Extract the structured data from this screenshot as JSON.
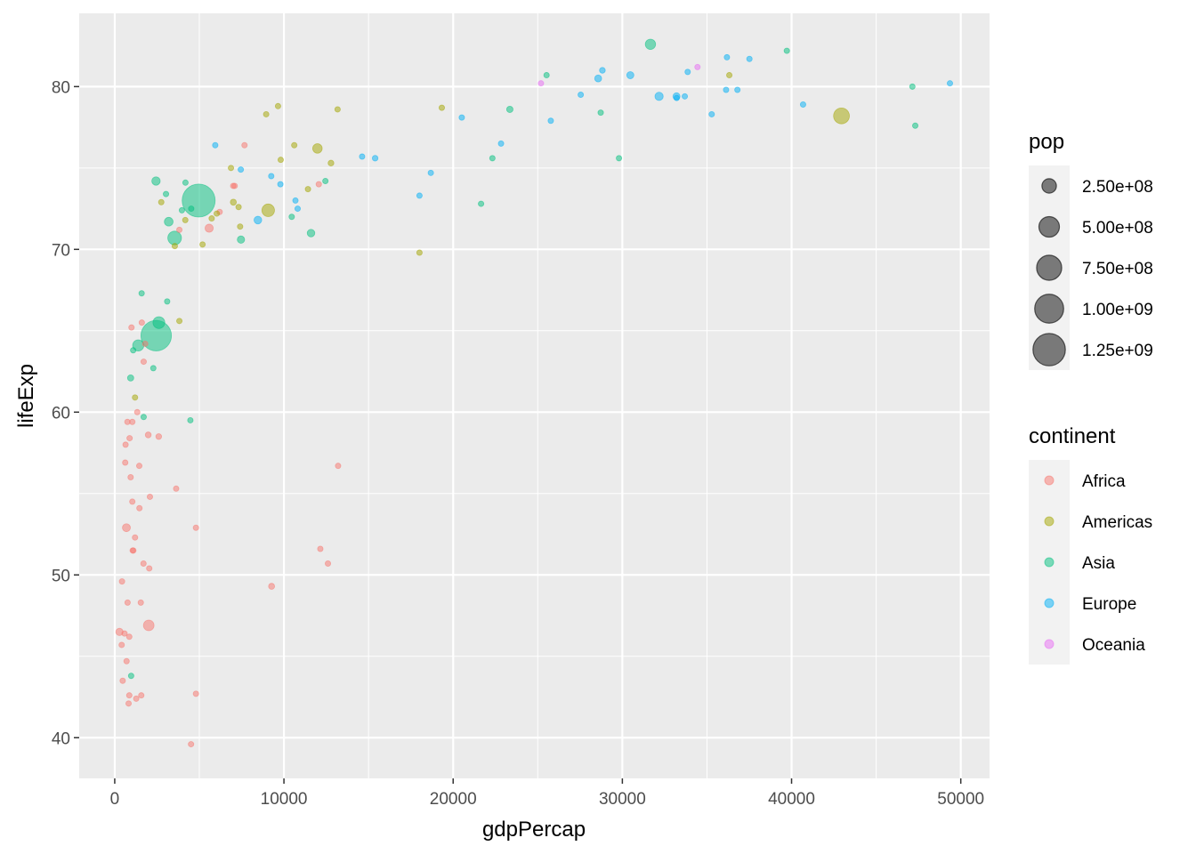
{
  "chart_data": {
    "type": "scatter",
    "title": "",
    "xlabel": "gdpPercap",
    "ylabel": "lifeExp",
    "xlim": [
      -2100,
      51700
    ],
    "ylim": [
      37.5,
      84.5
    ],
    "x_ticks": [
      0,
      10000,
      20000,
      30000,
      40000,
      50000
    ],
    "x_tick_labels": [
      "0",
      "10000",
      "20000",
      "30000",
      "40000",
      "50000"
    ],
    "y_ticks": [
      40,
      50,
      60,
      70,
      80
    ],
    "y_tick_labels": [
      "40",
      "50",
      "60",
      "70",
      "80"
    ],
    "grid": true,
    "point_opacity": 0.5,
    "legend_position": "right",
    "size_legend": {
      "title": "pop",
      "values": [
        250000000,
        500000000,
        750000000,
        1000000000,
        1250000000
      ],
      "labels": [
        "2.50e+08",
        "5.00e+08",
        "7.50e+08",
        "1.00e+09",
        "1.25e+09"
      ],
      "color": "#000000"
    },
    "color_legend": {
      "title": "continent",
      "entries": [
        {
          "name": "Africa",
          "color": "#F8766D"
        },
        {
          "name": "Americas",
          "color": "#A3A500"
        },
        {
          "name": "Asia",
          "color": "#00BF7D"
        },
        {
          "name": "Europe",
          "color": "#00B0F6"
        },
        {
          "name": "Oceania",
          "color": "#E76BF3"
        }
      ]
    },
    "series": [
      {
        "name": "Africa",
        "points": [
          [
            6200,
            72.3,
            33000000
          ],
          [
            4800,
            42.7,
            12000000
          ],
          [
            1450,
            56.7,
            8000000
          ],
          [
            12600,
            50.7,
            2000000
          ],
          [
            1200,
            52.3,
            14000000
          ],
          [
            430,
            49.6,
            8000000
          ],
          [
            2040,
            50.4,
            18000000
          ],
          [
            700,
            44.7,
            4500000
          ],
          [
            1700,
            50.7,
            10000000
          ],
          [
            990,
            65.2,
            700000
          ],
          [
            280,
            46.5,
            64000000
          ],
          [
            3630,
            55.3,
            3800000
          ],
          [
            1540,
            48.3,
            18000000
          ],
          [
            2080,
            54.8,
            500000
          ],
          [
            5580,
            71.3,
            80000000
          ],
          [
            12150,
            51.6,
            550000
          ],
          [
            640,
            58.0,
            4900000
          ],
          [
            690,
            52.9,
            76000000
          ],
          [
            13200,
            56.7,
            1400000
          ],
          [
            750,
            59.4,
            1700000
          ],
          [
            1330,
            60.0,
            22000000
          ],
          [
            940,
            56.0,
            9900000
          ],
          [
            580,
            46.4,
            1500000
          ],
          [
            1460,
            54.1,
            35000000
          ],
          [
            1570,
            42.6,
            2000000
          ],
          [
            410,
            45.7,
            3200000
          ],
          [
            12060,
            74.0,
            6000000
          ],
          [
            1040,
            59.4,
            19000000
          ],
          [
            760,
            48.3,
            13000000
          ],
          [
            1040,
            54.5,
            12000000
          ],
          [
            1800,
            64.2,
            3300000
          ],
          [
            7000,
            73.9,
            1200000
          ],
          [
            3820,
            71.2,
            33000000
          ],
          [
            820,
            42.1,
            20000000
          ],
          [
            4800,
            52.9,
            2000000
          ],
          [
            620,
            56.9,
            13000000
          ],
          [
            2010,
            46.9,
            135000000
          ],
          [
            7670,
            76.4,
            800000
          ],
          [
            860,
            46.2,
            9000000
          ],
          [
            1600,
            65.5,
            200000
          ],
          [
            1710,
            63.1,
            12000000
          ],
          [
            860,
            42.6,
            6000000
          ],
          [
            9270,
            49.3,
            44000000
          ],
          [
            1980,
            58.6,
            42000000
          ],
          [
            4510,
            39.6,
            1100000
          ],
          [
            2600,
            58.5,
            40000000
          ],
          [
            1100,
            51.5,
            29000000
          ],
          [
            880,
            58.4,
            5700000
          ],
          [
            7090,
            73.9,
            10000000
          ],
          [
            1060,
            51.5,
            29000000
          ],
          [
            1270,
            42.4,
            11000000
          ],
          [
            470,
            43.5,
            12000000
          ]
        ]
      },
      {
        "name": "Americas",
        "points": [
          [
            12780,
            75.3,
            40000000
          ],
          [
            3820,
            65.6,
            9000000
          ],
          [
            9070,
            72.4,
            190000000
          ],
          [
            36320,
            80.7,
            33000000
          ],
          [
            13170,
            78.6,
            16000000
          ],
          [
            7010,
            72.9,
            44000000
          ],
          [
            9650,
            78.8,
            4100000
          ],
          [
            8950,
            78.3,
            11000000
          ],
          [
            6030,
            72.2,
            9300000
          ],
          [
            6870,
            75.0,
            13000000
          ],
          [
            5730,
            71.9,
            6900000
          ],
          [
            5190,
            70.3,
            12000000
          ],
          [
            1200,
            60.9,
            8500000
          ],
          [
            3550,
            70.2,
            7500000
          ],
          [
            7320,
            72.6,
            2800000
          ],
          [
            11980,
            76.2,
            108000000
          ],
          [
            2750,
            72.9,
            5700000
          ],
          [
            9810,
            75.5,
            3200000
          ],
          [
            4170,
            71.8,
            6700000
          ],
          [
            7410,
            71.4,
            28000000
          ],
          [
            19330,
            78.7,
            3900000
          ],
          [
            18010,
            69.8,
            1100000
          ],
          [
            42950,
            78.2,
            301000000
          ],
          [
            10610,
            76.4,
            3400000
          ],
          [
            11420,
            73.7,
            26000000
          ]
        ]
      },
      {
        "name": "Asia",
        "points": [
          [
            970,
            43.8,
            32000000
          ],
          [
            29800,
            75.6,
            700000
          ],
          [
            1390,
            64.1,
            150000000
          ],
          [
            1710,
            59.7,
            14000000
          ],
          [
            4960,
            73.0,
            1300000000
          ],
          [
            39720,
            82.2,
            6900000
          ],
          [
            2450,
            64.7,
            1110000000
          ],
          [
            3540,
            70.7,
            223000000
          ],
          [
            11600,
            71.0,
            69000000
          ],
          [
            4470,
            59.5,
            27000000
          ],
          [
            25520,
            80.7,
            6400000
          ],
          [
            31660,
            82.6,
            127000000
          ],
          [
            4520,
            72.5,
            6000000
          ],
          [
            1590,
            67.3,
            23000000
          ],
          [
            23350,
            78.6,
            49000000
          ],
          [
            47310,
            77.6,
            2500000
          ],
          [
            10460,
            72.0,
            3900000
          ],
          [
            12450,
            74.2,
            24000000
          ],
          [
            3100,
            66.8,
            2900000
          ],
          [
            940,
            62.1,
            47000000
          ],
          [
            1090,
            63.8,
            28000000
          ],
          [
            22320,
            75.6,
            3200000
          ],
          [
            2610,
            65.5,
            169000000
          ],
          [
            3190,
            71.7,
            91000000
          ],
          [
            21650,
            72.8,
            27000000
          ],
          [
            47140,
            80.0,
            4600000
          ],
          [
            3970,
            72.4,
            20000000
          ],
          [
            28720,
            78.4,
            23000000
          ],
          [
            7460,
            70.6,
            65000000
          ],
          [
            2440,
            74.2,
            85000000
          ],
          [
            3030,
            73.4,
            4000000
          ],
          [
            2280,
            62.7,
            22000000
          ],
          [
            4180,
            74.1,
            3500000
          ]
        ]
      },
      {
        "name": "Europe",
        "points": [
          [
            5940,
            76.4,
            3600000
          ],
          [
            36130,
            79.8,
            8200000
          ],
          [
            33690,
            79.4,
            10400000
          ],
          [
            7450,
            74.9,
            4600000
          ],
          [
            10680,
            73.0,
            7300000
          ],
          [
            14620,
            75.7,
            4500000
          ],
          [
            22830,
            76.5,
            10200000
          ],
          [
            35280,
            78.3,
            5500000
          ],
          [
            33210,
            79.3,
            5200000
          ],
          [
            30470,
            80.7,
            61000000
          ],
          [
            32170,
            79.4,
            82000000
          ],
          [
            27540,
            79.5,
            10700000
          ],
          [
            18010,
            73.3,
            10000000
          ],
          [
            36180,
            81.8,
            300000
          ],
          [
            40680,
            78.9,
            4100000
          ],
          [
            28570,
            80.5,
            58000000
          ],
          [
            9250,
            74.5,
            680000
          ],
          [
            36800,
            79.8,
            16600000
          ],
          [
            49360,
            80.2,
            4600000
          ],
          [
            15390,
            75.6,
            38500000
          ],
          [
            20510,
            78.1,
            10600000
          ],
          [
            10810,
            72.5,
            22300000
          ],
          [
            9790,
            74.0,
            10200000
          ],
          [
            18680,
            74.7,
            5400000
          ],
          [
            25770,
            77.9,
            2000000
          ],
          [
            28820,
            81.0,
            40400000
          ],
          [
            33860,
            80.9,
            9000000
          ],
          [
            37510,
            81.7,
            7600000
          ],
          [
            8460,
            71.8,
            71000000
          ],
          [
            33200,
            79.4,
            60800000
          ]
        ]
      },
      {
        "name": "Oceania",
        "points": [
          [
            34440,
            81.2,
            20400000
          ],
          [
            25190,
            80.2,
            4100000
          ]
        ]
      }
    ]
  }
}
